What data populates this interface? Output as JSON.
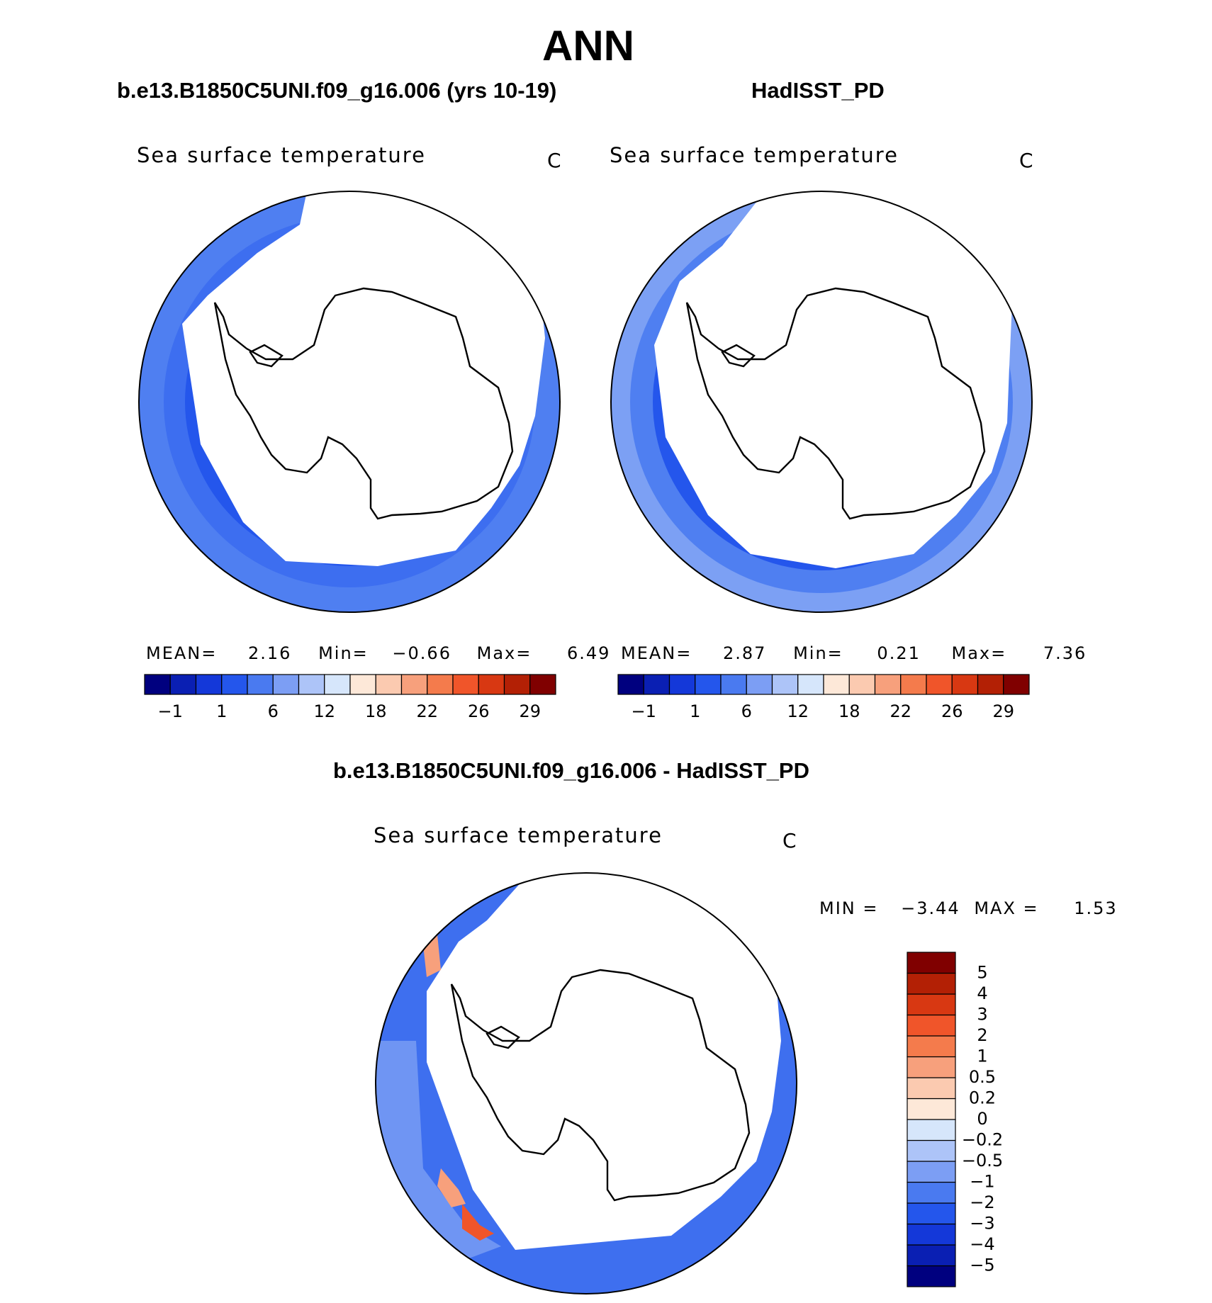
{
  "figure": {
    "season": "ANN",
    "model_case": "b.e13.B1850C5UNI.f09_g16.006 (yrs 10-19)",
    "obs_case": "HadISST_PD",
    "diff_case": "b.e13.B1850C5UNI.f09_g16.006 - HadISST_PD"
  },
  "panels": {
    "model": {
      "variable": "Sea surface temperature",
      "units": "C",
      "stats": {
        "mean_label": "MEAN=",
        "mean": "2.16",
        "min_label": "Min=",
        "min": "−0.66",
        "max_label": "Max=",
        "max": "6.49"
      }
    },
    "obs": {
      "variable": "Sea surface temperature",
      "units": "C",
      "stats": {
        "mean_label": "MEAN=",
        "mean": "2.87",
        "min_label": "Min=",
        "min": "0.21",
        "max_label": "Max=",
        "max": "7.36"
      }
    },
    "diff": {
      "variable": "Sea surface temperature",
      "units": "C",
      "stats": {
        "min_label": "MIN =",
        "min": "−3.44",
        "max_label": "MAX =",
        "max": "1.53"
      }
    }
  },
  "colorbars": {
    "absolute": {
      "colors": [
        "#00007f",
        "#0a1fb3",
        "#1438d9",
        "#2456ec",
        "#4a7af0",
        "#7c9ef4",
        "#adc4f8",
        "#d6e6fb",
        "#fde8d8",
        "#fbcab0",
        "#f7a07c",
        "#f47b4c",
        "#f0552a",
        "#d83812",
        "#b32005",
        "#800000"
      ],
      "tick_labels": [
        "−1",
        "1",
        "6",
        "12",
        "18",
        "22",
        "26",
        "29"
      ]
    },
    "difference": {
      "colors": [
        "#00007f",
        "#0a1fb3",
        "#1438d9",
        "#2456ec",
        "#4a7af0",
        "#7c9ef4",
        "#adc4f8",
        "#d6e6fb",
        "#fde8d8",
        "#fbcab0",
        "#f7a07c",
        "#f47b4c",
        "#f0552a",
        "#d83812",
        "#b32005",
        "#800000"
      ],
      "tick_labels": [
        "−5",
        "−4",
        "−3",
        "−2",
        "−1",
        "−0.5",
        "−0.2",
        "0",
        "0.2",
        "0.5",
        "1",
        "2",
        "3",
        "4",
        "5"
      ]
    }
  },
  "map_colors": {
    "ocean_dark": "#2456ec",
    "ocean_mid": "#3d6ef0",
    "ocean_light": "#4f7ff1",
    "ocean_pale": "#7ca0f4",
    "diff_base": "#3e6fef",
    "diff_pos": "#f7a07c",
    "diff_warm": "#f0552a",
    "coast": "#000000"
  }
}
